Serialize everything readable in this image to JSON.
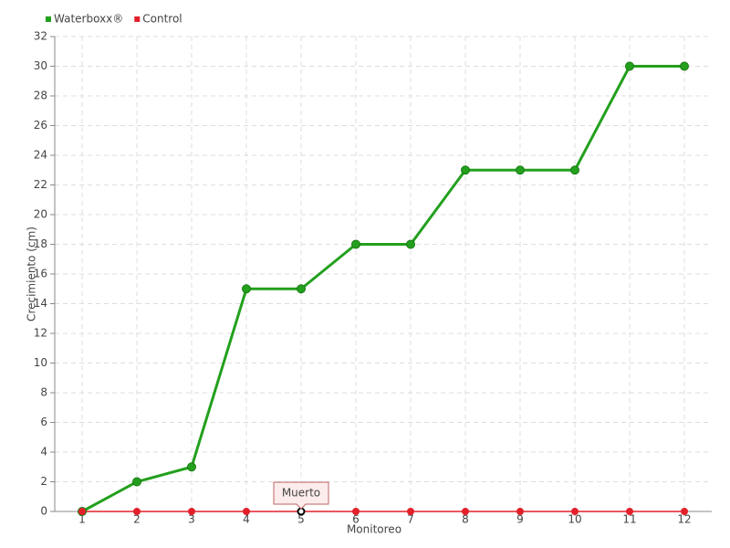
{
  "chart_data": {
    "type": "line",
    "categories": [
      "1",
      "2",
      "3",
      "4",
      "5",
      "6",
      "7",
      "8",
      "9",
      "10",
      "11",
      "12"
    ],
    "series": [
      {
        "name": "Waterboxx®",
        "color": "#23a01d",
        "values": [
          0,
          2,
          3,
          15,
          15,
          18,
          18,
          23,
          23,
          23,
          30,
          30
        ]
      },
      {
        "name": "Control",
        "color": "#e3202a",
        "values": [
          0,
          0,
          0,
          0,
          0,
          0,
          0,
          0,
          0,
          0,
          0,
          0
        ]
      }
    ],
    "x_label": "Monitoreo",
    "y_label": "Crecimiento (cm)",
    "ylim": [
      0,
      32
    ],
    "yticks": [
      0,
      2,
      4,
      6,
      8,
      10,
      12,
      14,
      16,
      18,
      20,
      22,
      24,
      26,
      28,
      30,
      32
    ],
    "grid": true,
    "legend": "top-left",
    "annotations": [
      {
        "text": "Muerto",
        "x": "5",
        "series": "Control"
      }
    ]
  }
}
